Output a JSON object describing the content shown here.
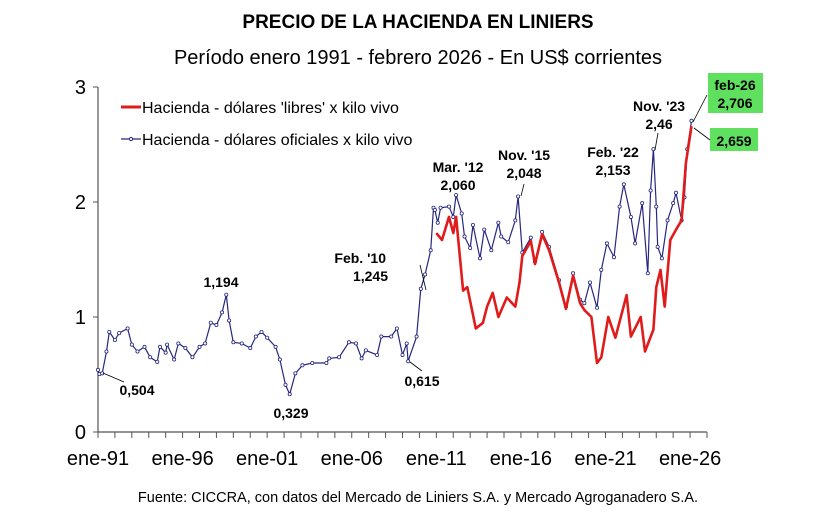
{
  "chart_data": {
    "type": "line",
    "title": "PRECIO DE LA HACIENDA EN LINIERS",
    "subtitle": "Período enero 1991 - febrero 2026 - En US$ corrientes",
    "xlabel": "",
    "ylabel": "",
    "xlim": [
      "1991-01",
      "2027-01"
    ],
    "ylim": [
      0,
      3
    ],
    "yticks": [
      "0",
      "1",
      "2",
      "3"
    ],
    "xticks": [
      {
        "date": "1991-01",
        "label": "ene-91"
      },
      {
        "date": "1996-01",
        "label": "ene-96"
      },
      {
        "date": "2001-01",
        "label": "ene-01"
      },
      {
        "date": "2006-01",
        "label": "ene-06"
      },
      {
        "date": "2011-01",
        "label": "ene-11"
      },
      {
        "date": "2016-01",
        "label": "ene-16"
      },
      {
        "date": "2021-01",
        "label": "ene-21"
      },
      {
        "date": "2026-01",
        "label": "ene-26"
      }
    ],
    "grid": false,
    "legend_placement": "top-left",
    "series": [
      {
        "name": "Hacienda - dólares 'libres' x kilo vivo",
        "color": "#e01b1b",
        "points": [
          [
            "2011-01",
            1.73
          ],
          [
            "2011-05",
            1.67
          ],
          [
            "2011-10",
            1.87
          ],
          [
            "2012-01",
            1.73
          ],
          [
            "2012-03",
            1.87
          ],
          [
            "2012-08",
            1.23
          ],
          [
            "2012-11",
            1.26
          ],
          [
            "2013-05",
            0.9
          ],
          [
            "2013-10",
            0.95
          ],
          [
            "2014-01",
            1.09
          ],
          [
            "2014-05",
            1.21
          ],
          [
            "2014-09",
            1.0
          ],
          [
            "2015-03",
            1.17
          ],
          [
            "2015-09",
            1.09
          ],
          [
            "2015-12",
            1.3
          ],
          [
            "2016-02",
            1.53
          ],
          [
            "2016-08",
            1.66
          ],
          [
            "2016-11",
            1.46
          ],
          [
            "2017-04",
            1.72
          ],
          [
            "2017-09",
            1.58
          ],
          [
            "2018-04",
            1.3
          ],
          [
            "2018-09",
            1.07
          ],
          [
            "2019-02",
            1.36
          ],
          [
            "2019-07",
            1.12
          ],
          [
            "2019-10",
            1.06
          ],
          [
            "2020-03",
            1.0
          ],
          [
            "2020-07",
            0.6
          ],
          [
            "2020-10",
            0.65
          ],
          [
            "2021-03",
            1.0
          ],
          [
            "2021-08",
            0.82
          ],
          [
            "2022-04",
            1.19
          ],
          [
            "2022-07",
            0.83
          ],
          [
            "2023-02",
            1.0
          ],
          [
            "2023-05",
            0.7
          ],
          [
            "2023-11",
            0.89
          ],
          [
            "2024-01",
            1.26
          ],
          [
            "2024-04",
            1.41
          ],
          [
            "2024-07",
            1.09
          ],
          [
            "2024-11",
            1.67
          ],
          [
            "2025-04",
            1.78
          ],
          [
            "2025-07",
            1.84
          ],
          [
            "2025-10",
            2.34
          ],
          [
            "2026-02",
            2.659
          ]
        ]
      },
      {
        "name": "Hacienda - dólares oficiales x kilo vivo",
        "color": "#27277f",
        "points": [
          [
            "1991-01",
            0.54
          ],
          [
            "1991-02",
            0.504
          ],
          [
            "1991-04",
            0.51
          ],
          [
            "1991-07",
            0.7
          ],
          [
            "1991-09",
            0.87
          ],
          [
            "1992-01",
            0.8
          ],
          [
            "1992-04",
            0.86
          ],
          [
            "1992-10",
            0.9
          ],
          [
            "1993-01",
            0.76
          ],
          [
            "1993-05",
            0.7
          ],
          [
            "1993-10",
            0.74
          ],
          [
            "1994-02",
            0.65
          ],
          [
            "1994-07",
            0.61
          ],
          [
            "1994-09",
            0.74
          ],
          [
            "1995-01",
            0.69
          ],
          [
            "1995-02",
            0.76
          ],
          [
            "1995-07",
            0.63
          ],
          [
            "1995-10",
            0.77
          ],
          [
            "1996-03",
            0.73
          ],
          [
            "1996-08",
            0.65
          ],
          [
            "1997-01",
            0.74
          ],
          [
            "1997-05",
            0.77
          ],
          [
            "1997-09",
            0.95
          ],
          [
            "1998-01",
            0.93
          ],
          [
            "1998-05",
            1.04
          ],
          [
            "1998-08",
            1.194
          ],
          [
            "1998-10",
            0.97
          ],
          [
            "1999-01",
            0.78
          ],
          [
            "1999-07",
            0.77
          ],
          [
            "2000-01",
            0.73
          ],
          [
            "2000-05",
            0.83
          ],
          [
            "2000-09",
            0.87
          ],
          [
            "2001-01",
            0.82
          ],
          [
            "2001-07",
            0.74
          ],
          [
            "2001-10",
            0.63
          ],
          [
            "2002-02",
            0.41
          ],
          [
            "2002-05",
            0.329
          ],
          [
            "2002-09",
            0.51
          ],
          [
            "2003-02",
            0.58
          ],
          [
            "2003-09",
            0.6
          ],
          [
            "2004-07",
            0.6
          ],
          [
            "2004-09",
            0.64
          ],
          [
            "2005-04",
            0.65
          ],
          [
            "2005-11",
            0.78
          ],
          [
            "2006-04",
            0.77
          ],
          [
            "2006-08",
            0.64
          ],
          [
            "2006-11",
            0.71
          ],
          [
            "2007-07",
            0.67
          ],
          [
            "2007-10",
            0.83
          ],
          [
            "2008-05",
            0.83
          ],
          [
            "2008-09",
            0.9
          ],
          [
            "2009-01",
            0.67
          ],
          [
            "2009-04",
            0.77
          ],
          [
            "2009-05",
            0.615
          ],
          [
            "2009-11",
            0.83
          ],
          [
            "2010-02",
            1.245
          ],
          [
            "2010-05",
            1.37
          ],
          [
            "2010-09",
            1.58
          ],
          [
            "2010-11",
            1.95
          ],
          [
            "2010-12",
            1.93
          ],
          [
            "2011-02",
            1.82
          ],
          [
            "2011-04",
            1.95
          ],
          [
            "2011-10",
            1.96
          ],
          [
            "2012-01",
            1.87
          ],
          [
            "2012-03",
            2.06
          ],
          [
            "2012-07",
            1.9
          ],
          [
            "2012-09",
            1.7
          ],
          [
            "2013-01",
            1.6
          ],
          [
            "2013-03",
            1.8
          ],
          [
            "2013-08",
            1.51
          ],
          [
            "2013-11",
            1.76
          ],
          [
            "2014-04",
            1.58
          ],
          [
            "2014-09",
            1.82
          ],
          [
            "2014-11",
            1.7
          ],
          [
            "2015-04",
            1.65
          ],
          [
            "2015-09",
            1.84
          ],
          [
            "2015-11",
            2.048
          ],
          [
            "2016-02",
            1.56
          ],
          [
            "2016-08",
            1.69
          ],
          [
            "2016-11",
            1.48
          ],
          [
            "2017-04",
            1.74
          ],
          [
            "2017-09",
            1.61
          ],
          [
            "2018-04",
            1.32
          ],
          [
            "2018-09",
            1.09
          ],
          [
            "2019-02",
            1.38
          ],
          [
            "2019-07",
            1.15
          ],
          [
            "2019-10",
            1.12
          ],
          [
            "2020-02",
            1.3
          ],
          [
            "2020-07",
            1.08
          ],
          [
            "2020-10",
            1.41
          ],
          [
            "2021-02",
            1.64
          ],
          [
            "2021-07",
            1.52
          ],
          [
            "2021-11",
            1.96
          ],
          [
            "2022-02",
            2.153
          ],
          [
            "2022-07",
            1.87
          ],
          [
            "2022-10",
            1.64
          ],
          [
            "2023-03",
            1.99
          ],
          [
            "2023-07",
            1.38
          ],
          [
            "2023-09",
            2.1
          ],
          [
            "2023-11",
            2.46
          ],
          [
            "2024-01",
            1.96
          ],
          [
            "2024-02",
            1.61
          ],
          [
            "2024-05",
            1.51
          ],
          [
            "2024-09",
            1.84
          ],
          [
            "2025-01",
            1.99
          ],
          [
            "2025-03",
            2.08
          ],
          [
            "2025-07",
            1.84
          ],
          [
            "2025-09",
            2.04
          ],
          [
            "2025-11",
            2.46
          ],
          [
            "2026-02",
            2.706
          ]
        ]
      }
    ],
    "annotations": [
      {
        "id": "a1991",
        "lines": [
          "0,504"
        ]
      },
      {
        "id": "a1998",
        "lines": [
          "1,194"
        ]
      },
      {
        "id": "a2002",
        "lines": [
          "0,329"
        ]
      },
      {
        "id": "a2010",
        "lines": [
          "Feb. '10",
          "1,245"
        ]
      },
      {
        "id": "a2009",
        "lines": [
          "0,615"
        ]
      },
      {
        "id": "a2012",
        "lines": [
          "Mar. '12",
          "2,060"
        ]
      },
      {
        "id": "a2015",
        "lines": [
          "Nov. '15",
          "2,048"
        ]
      },
      {
        "id": "a2022",
        "lines": [
          "Feb. '22",
          "2,153"
        ]
      },
      {
        "id": "a2023",
        "lines": [
          "Nov. '23",
          "2,46"
        ]
      },
      {
        "id": "a2026o",
        "lines": [
          "feb-26",
          "2,706"
        ],
        "highlight": "#5fe05f"
      },
      {
        "id": "a2026l",
        "lines": [
          "2,659"
        ],
        "highlight": "#5fe05f"
      }
    ]
  },
  "source": "Fuente: CICCRA, con datos del Mercado de Liniers S.A. y Mercado Agroganadero S.A."
}
